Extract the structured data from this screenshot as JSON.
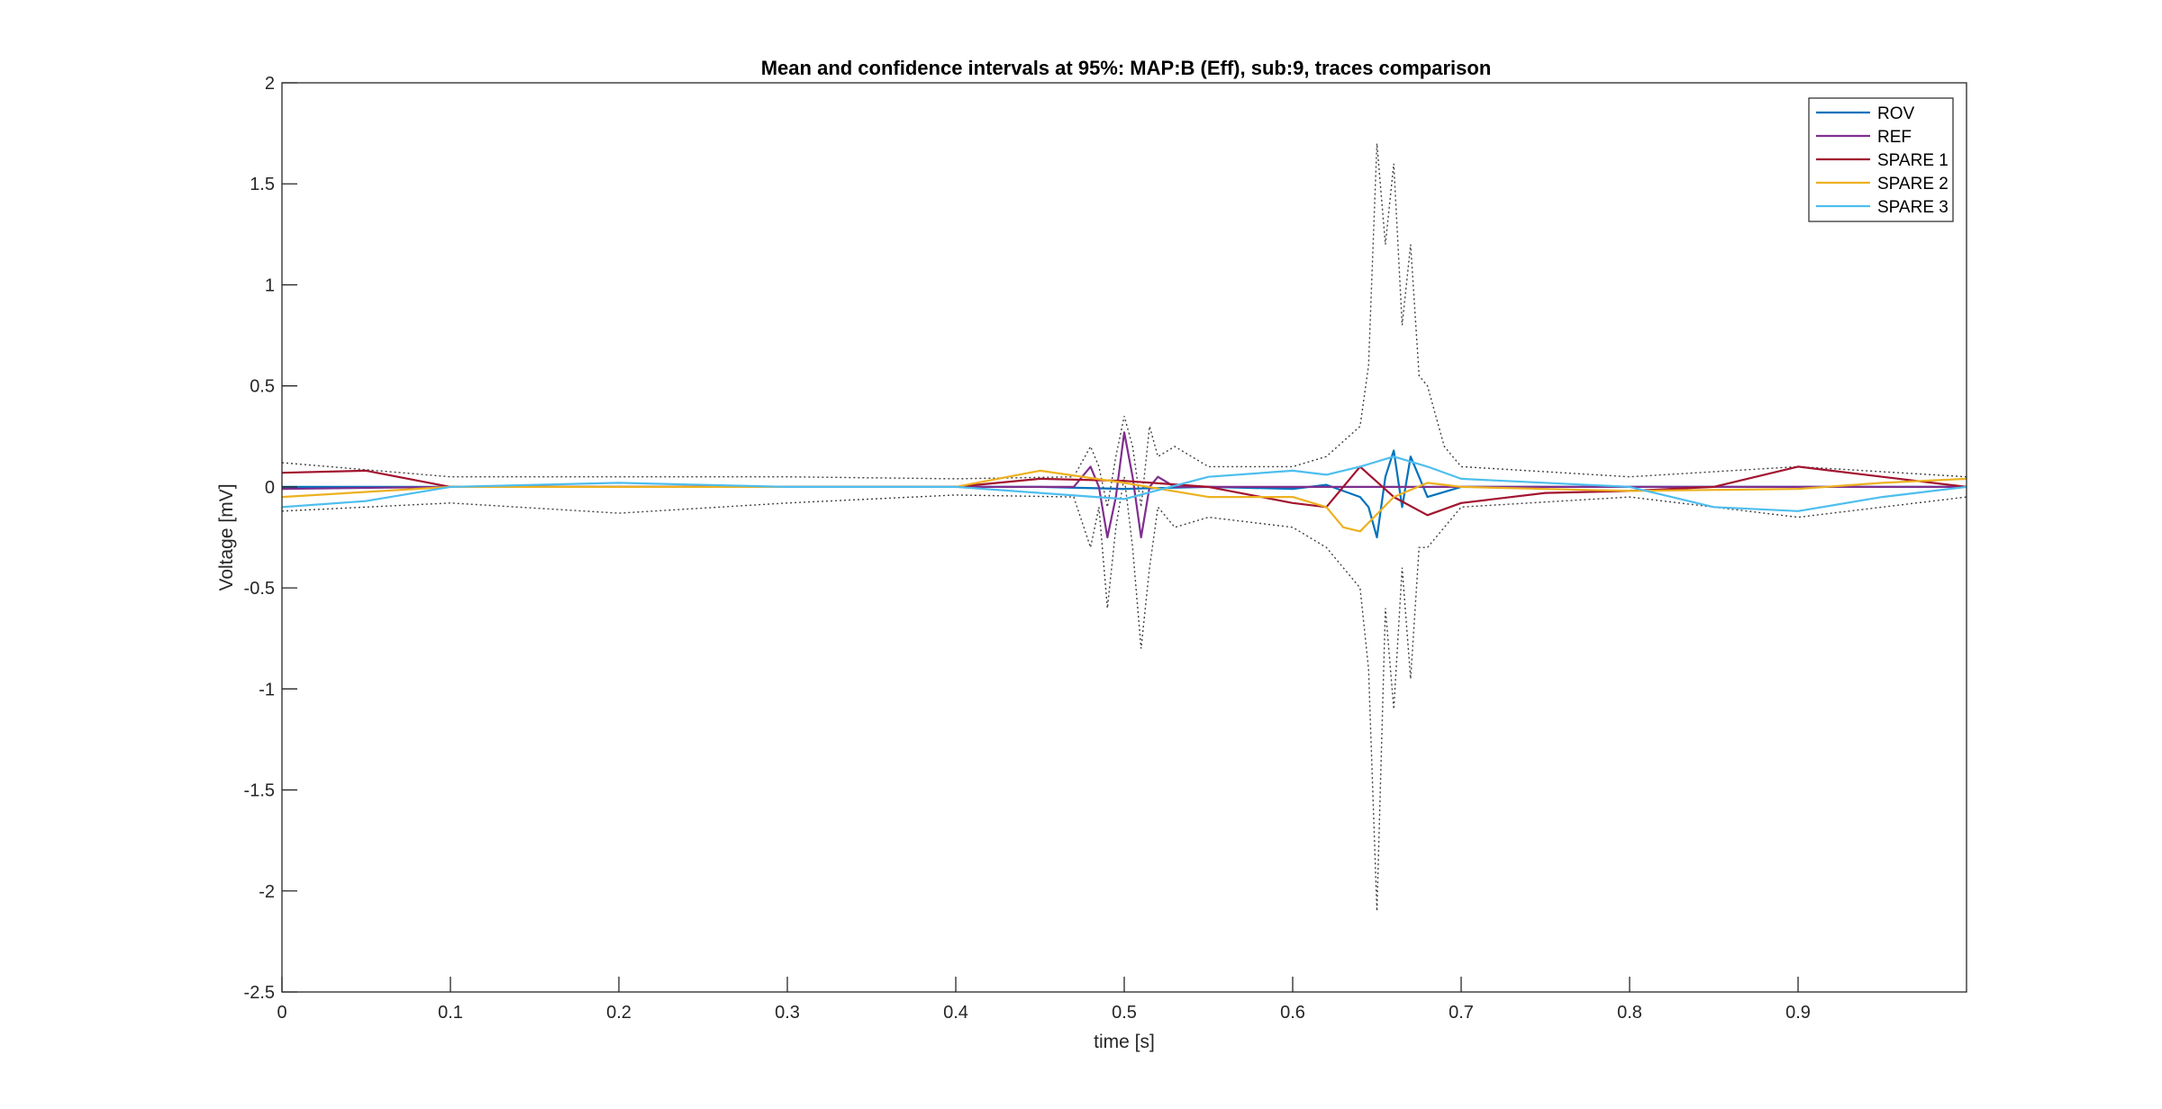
{
  "chart_data": {
    "type": "line",
    "title": "Mean and confidence intervals at 95%: MAP:B (Eff), sub:9, traces comparison",
    "xlabel": "time [s]",
    "ylabel": "Voltage [mV]",
    "xlim": [
      0,
      1
    ],
    "ylim": [
      -2.5,
      2
    ],
    "xticks": [
      "0",
      "0.1",
      "0.2",
      "0.3",
      "0.4",
      "0.5",
      "0.6",
      "0.7",
      "0.8",
      "0.9"
    ],
    "xtick_values": [
      0,
      0.1,
      0.2,
      0.3,
      0.4,
      0.5,
      0.6,
      0.7,
      0.8,
      0.9
    ],
    "yticks": [
      "2",
      "1.5",
      "1",
      "0.5",
      "0",
      "-0.5",
      "-1",
      "-1.5",
      "-2",
      "-2.5"
    ],
    "ytick_values": [
      2,
      1.5,
      1,
      0.5,
      0,
      -0.5,
      -1,
      -1.5,
      -2,
      -2.5
    ],
    "legend_position": "top-right",
    "series": [
      {
        "name": "ROV",
        "color": "#0072BD",
        "x": [
          0,
          0.1,
          0.2,
          0.3,
          0.4,
          0.45,
          0.5,
          0.55,
          0.6,
          0.62,
          0.64,
          0.645,
          0.65,
          0.655,
          0.66,
          0.665,
          0.67,
          0.675,
          0.68,
          0.7,
          0.8,
          0.9,
          1.0
        ],
        "y": [
          0,
          0,
          0,
          0,
          0,
          0,
          -0.01,
          0,
          -0.01,
          0.01,
          -0.05,
          -0.1,
          -0.25,
          0.05,
          0.18,
          -0.1,
          0.15,
          0.05,
          -0.05,
          0,
          0,
          0,
          0
        ]
      },
      {
        "name": "REF",
        "color": "#7E2F8E",
        "x": [
          0,
          0.1,
          0.2,
          0.3,
          0.4,
          0.47,
          0.48,
          0.485,
          0.49,
          0.495,
          0.5,
          0.505,
          0.51,
          0.515,
          0.52,
          0.53,
          0.55,
          0.6,
          0.7,
          0.8,
          0.9,
          1.0
        ],
        "y": [
          -0.01,
          0,
          0,
          0,
          0,
          0,
          0.1,
          0,
          -0.25,
          -0.05,
          0.27,
          0.05,
          -0.25,
          0,
          0.05,
          0,
          0,
          0,
          0,
          0,
          0,
          0
        ]
      },
      {
        "name": "SPARE 1",
        "color": "#A2142F",
        "x": [
          0,
          0.05,
          0.1,
          0.2,
          0.3,
          0.4,
          0.45,
          0.5,
          0.55,
          0.6,
          0.62,
          0.64,
          0.66,
          0.68,
          0.7,
          0.75,
          0.8,
          0.85,
          0.9,
          0.95,
          1.0
        ],
        "y": [
          0.07,
          0.08,
          0,
          0,
          0,
          0,
          0.04,
          0.03,
          0,
          -0.08,
          -0.1,
          0.1,
          -0.05,
          -0.14,
          -0.08,
          -0.03,
          -0.02,
          0,
          0.1,
          0.05,
          0
        ]
      },
      {
        "name": "SPARE 2",
        "color": "#EDB120",
        "x": [
          0,
          0.1,
          0.2,
          0.3,
          0.4,
          0.45,
          0.5,
          0.55,
          0.6,
          0.62,
          0.63,
          0.64,
          0.66,
          0.68,
          0.7,
          0.8,
          0.9,
          0.95,
          1.0
        ],
        "y": [
          -0.05,
          0,
          0,
          0,
          0,
          0.08,
          0.02,
          -0.05,
          -0.05,
          -0.1,
          -0.2,
          -0.22,
          -0.05,
          0.02,
          0,
          -0.02,
          -0.01,
          0.02,
          0.04
        ]
      },
      {
        "name": "SPARE 3",
        "color": "#4DBEEE",
        "x": [
          0,
          0.05,
          0.1,
          0.2,
          0.3,
          0.4,
          0.45,
          0.5,
          0.55,
          0.6,
          0.62,
          0.64,
          0.66,
          0.68,
          0.7,
          0.8,
          0.85,
          0.9,
          0.95,
          1.0
        ],
        "y": [
          -0.1,
          -0.07,
          0,
          0.02,
          0,
          0,
          -0.03,
          -0.06,
          0.05,
          0.08,
          0.06,
          0.1,
          0.15,
          0.1,
          0.04,
          0,
          -0.1,
          -0.12,
          -0.05,
          0
        ]
      }
    ],
    "confidence_bounds": {
      "color": "#404040",
      "style": "dotted",
      "x": [
        0,
        0.1,
        0.2,
        0.3,
        0.4,
        0.47,
        0.48,
        0.485,
        0.49,
        0.495,
        0.5,
        0.505,
        0.51,
        0.515,
        0.52,
        0.53,
        0.55,
        0.6,
        0.62,
        0.64,
        0.645,
        0.65,
        0.655,
        0.66,
        0.665,
        0.67,
        0.675,
        0.68,
        0.69,
        0.7,
        0.8,
        0.9,
        1.0
      ],
      "upper": [
        0.12,
        0.05,
        0.05,
        0.05,
        0.04,
        0.05,
        0.2,
        0.1,
        -0.1,
        0.15,
        0.35,
        0.2,
        -0.1,
        0.3,
        0.15,
        0.2,
        0.1,
        0.1,
        0.15,
        0.3,
        0.6,
        1.7,
        1.2,
        1.6,
        0.8,
        1.2,
        0.55,
        0.5,
        0.2,
        0.1,
        0.05,
        0.1,
        0.05
      ],
      "lower": [
        -0.12,
        -0.08,
        -0.13,
        -0.08,
        -0.04,
        -0.05,
        -0.3,
        -0.1,
        -0.6,
        -0.2,
        0.05,
        -0.3,
        -0.8,
        -0.4,
        -0.1,
        -0.2,
        -0.15,
        -0.2,
        -0.3,
        -0.5,
        -0.9,
        -2.1,
        -0.6,
        -1.1,
        -0.4,
        -0.95,
        -0.3,
        -0.3,
        -0.2,
        -0.1,
        -0.05,
        -0.15,
        -0.05
      ]
    }
  }
}
